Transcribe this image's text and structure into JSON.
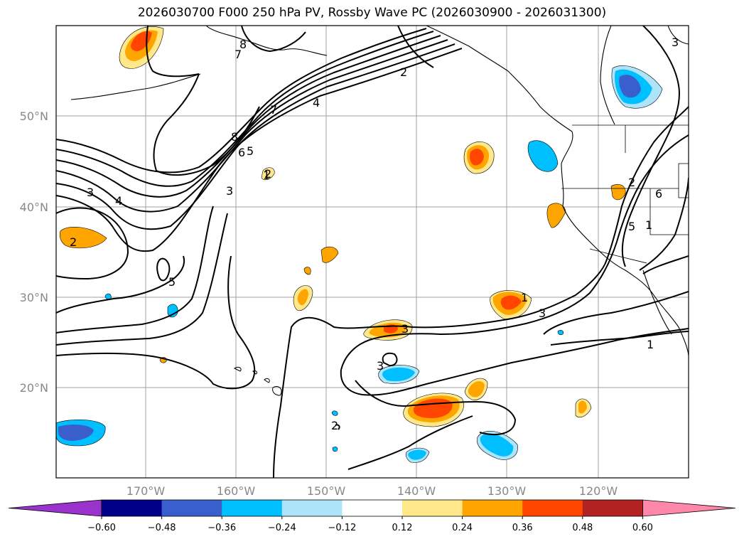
{
  "title": "2026030700 F000 250 hPa PV, Rossby Wave PC (2026030900 - 2026031300)",
  "lat_labels": [
    "50°N",
    "40°N",
    "30°N",
    "20°N"
  ],
  "lon_labels": [
    "170°W",
    "160°W",
    "150°W",
    "140°W",
    "130°W",
    "120°W"
  ],
  "colorbar": {
    "ticks": [
      "−0.60",
      "−0.48",
      "−0.36",
      "−0.24",
      "−0.12",
      "0.12",
      "0.24",
      "0.36",
      "0.48",
      "0.60"
    ],
    "colors": [
      "#9933cc",
      "#00008b",
      "#3a5fcd",
      "#00bfff",
      "#aee4fa",
      "#ffffff",
      "#ffe88a",
      "#ffa500",
      "#ff4500",
      "#b22222",
      "#ff88aa"
    ]
  },
  "contour_labels": [
    "8",
    "3",
    "2",
    "4",
    "7",
    "8",
    "6",
    "5",
    "3",
    "2",
    "2",
    "3",
    "4",
    "2",
    "5",
    "1",
    "1",
    "3",
    "3",
    "1",
    "2",
    "5",
    "1",
    "6",
    "7",
    "3"
  ]
}
